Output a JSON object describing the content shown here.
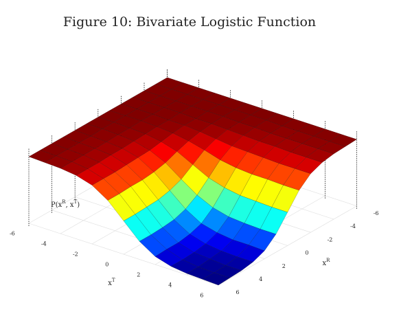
{
  "chart_data": {
    "type": "surface",
    "title": "Figure 10: Bivariate Logistic Function",
    "x_axis_label": {
      "base": "x",
      "sup": "T"
    },
    "y_axis_label": {
      "base": "x",
      "sup": "R"
    },
    "z_axis_label": {
      "parts": [
        "P(x",
        "R",
        ", x",
        "T",
        ")"
      ]
    },
    "x": [
      -6,
      -5,
      -4,
      -3,
      -2,
      -1,
      0,
      1,
      2,
      3,
      4,
      5,
      6
    ],
    "y": [
      -6,
      -5,
      -4,
      -3,
      -2,
      -1,
      0,
      1,
      2,
      3,
      4,
      5,
      6
    ],
    "z": [
      [
        1,
        1,
        1,
        1,
        1,
        1,
        1,
        1,
        1,
        1,
        1,
        1,
        1
      ],
      [
        1,
        1,
        1,
        1,
        1,
        1,
        1,
        1,
        0.99,
        0.99,
        0.99,
        0.99,
        0.99
      ],
      [
        1,
        1,
        1,
        1,
        1,
        1,
        0.99,
        0.99,
        0.98,
        0.98,
        0.98,
        0.98,
        0.98
      ],
      [
        1,
        1,
        1,
        1,
        0.99,
        0.99,
        0.98,
        0.97,
        0.96,
        0.96,
        0.95,
        0.95,
        0.95
      ],
      [
        1,
        1,
        1,
        0.99,
        0.99,
        0.97,
        0.94,
        0.91,
        0.9,
        0.89,
        0.88,
        0.88,
        0.88
      ],
      [
        1,
        1,
        1,
        0.99,
        0.97,
        0.93,
        0.87,
        0.8,
        0.76,
        0.74,
        0.74,
        0.73,
        0.73
      ],
      [
        1,
        1,
        0.99,
        0.98,
        0.94,
        0.87,
        0.75,
        0.63,
        0.56,
        0.52,
        0.51,
        0.5,
        0.5
      ],
      [
        1,
        1,
        0.99,
        0.97,
        0.91,
        0.8,
        0.63,
        0.47,
        0.36,
        0.3,
        0.28,
        0.27,
        0.27
      ],
      [
        1,
        0.99,
        0.98,
        0.96,
        0.9,
        0.76,
        0.56,
        0.36,
        0.22,
        0.16,
        0.13,
        0.13,
        0.12
      ],
      [
        1,
        0.99,
        0.98,
        0.96,
        0.89,
        0.74,
        0.52,
        0.3,
        0.16,
        0.09,
        0.06,
        0.05,
        0.05
      ],
      [
        1,
        0.99,
        0.98,
        0.95,
        0.88,
        0.74,
        0.51,
        0.28,
        0.13,
        0.06,
        0.04,
        0.02,
        0.02
      ],
      [
        1,
        0.99,
        0.98,
        0.95,
        0.88,
        0.73,
        0.5,
        0.27,
        0.13,
        0.05,
        0.02,
        0.01,
        0.01
      ],
      [
        1,
        0.99,
        0.98,
        0.95,
        0.88,
        0.73,
        0.5,
        0.27,
        0.12,
        0.05,
        0.02,
        0.01,
        0
      ]
    ],
    "xlim": [
      -6,
      6
    ],
    "ylim": [
      -6,
      6
    ],
    "zlim": [
      0,
      1
    ],
    "xticks": [
      -6,
      -4,
      -2,
      0,
      2,
      4,
      6
    ],
    "yticks": [
      -6,
      -4,
      -2,
      0,
      2,
      4,
      6
    ],
    "colormap": "jet",
    "grid": true
  }
}
